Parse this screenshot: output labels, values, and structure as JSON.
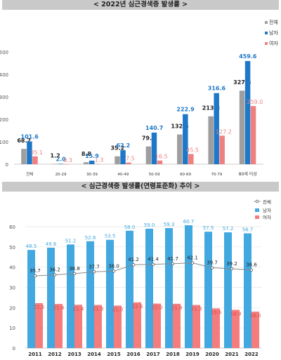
{
  "chart_data": [
    {
      "type": "bar",
      "title": "< 2022년 심근경색증 발생률 >",
      "categories": [
        "전체",
        "20-29",
        "30-39",
        "40-49",
        "50-59",
        "60-69",
        "70-79",
        "80세 이상"
      ],
      "series": [
        {
          "name": "전체",
          "color": "#9e9e9e",
          "values": [
            68.2,
            1.2,
            8.8,
            35.2,
            79.2,
            132.5,
            213.3,
            327.5
          ]
        },
        {
          "name": "남자",
          "color": "#1f77c8",
          "values": [
            101.6,
            2.0,
            15.9,
            62.2,
            140.7,
            222.9,
            316.6,
            459.6
          ]
        },
        {
          "name": "여자",
          "color": "#f08080",
          "values": [
            35.1,
            0.3,
            1.3,
            7.5,
            16.5,
            45.5,
            127.2,
            259.0
          ]
        }
      ],
      "ylim": [
        0,
        500
      ],
      "yticks": [
        "0",
        "100",
        "200",
        "300",
        "400",
        "500"
      ],
      "grid": false,
      "legend": "top-right"
    },
    {
      "type": "bar+line",
      "title": "< 심근경색증 발생률(연령표준화) 추이 >",
      "categories": [
        "2011",
        "2012",
        "2013",
        "2014",
        "2015",
        "2016",
        "2017",
        "2018",
        "2019",
        "2020",
        "2021",
        "2022"
      ],
      "series": [
        {
          "name": "전체",
          "kind": "line",
          "color": "#8a8a8a",
          "values": [
            35.7,
            36.2,
            36.8,
            37.7,
            38.0,
            41.2,
            41.4,
            41.7,
            42.1,
            39.7,
            39.2,
            38.6
          ]
        },
        {
          "name": "남자",
          "kind": "bar",
          "color": "#41a8e0",
          "values": [
            48.5,
            49.6,
            51.2,
            52.8,
            53.5,
            58.0,
            59.0,
            59.3,
            60.7,
            57.5,
            57.2,
            56.7
          ]
        },
        {
          "name": "여자",
          "kind": "bar",
          "color": "#f47c7c",
          "values": [
            22.2,
            21.8,
            21.4,
            21.3,
            21.0,
            22.6,
            22.0,
            21.9,
            21.3,
            19.6,
            18.9,
            18.0
          ]
        }
      ],
      "ylim": [
        0,
        60
      ],
      "yticks": [
        "0",
        "10",
        "20",
        "30",
        "40",
        "50",
        "60"
      ],
      "grid": true,
      "legend": "top-right"
    }
  ]
}
